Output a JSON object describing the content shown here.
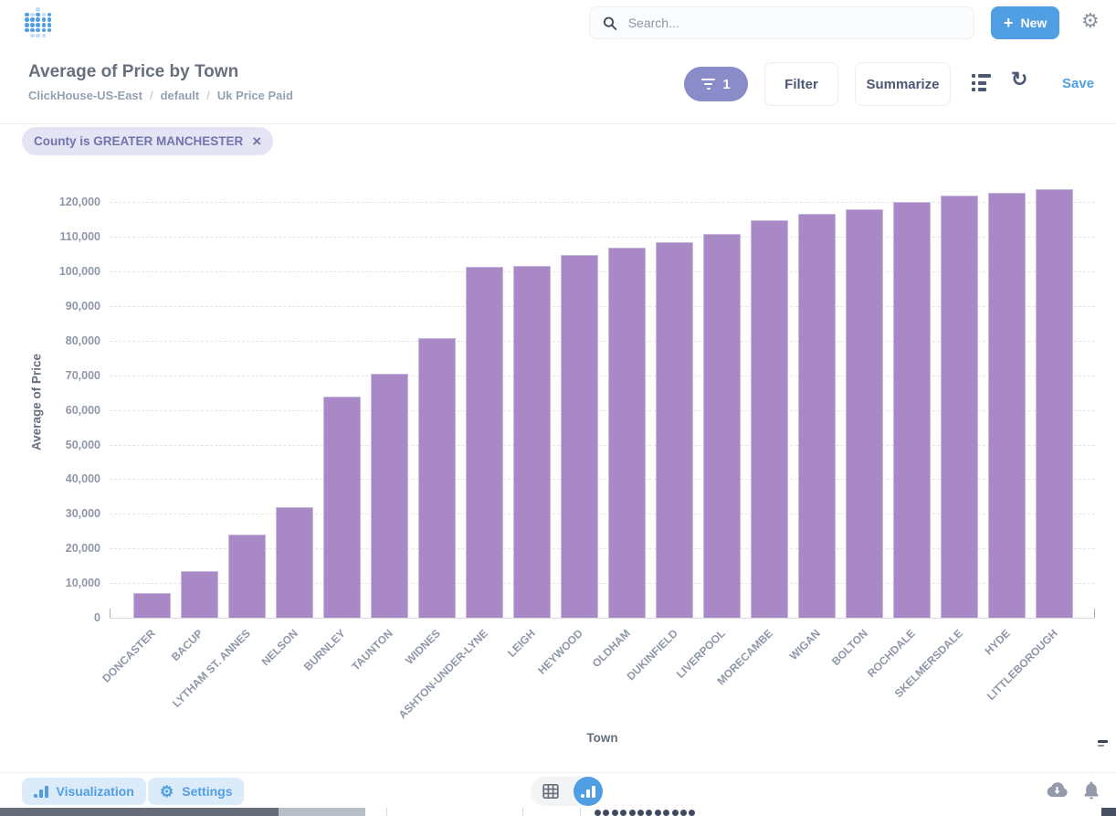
{
  "header": {
    "search_placeholder": "Search...",
    "new_button_label": "New",
    "plus_glyph": "+",
    "gear_glyph": "⚙"
  },
  "question": {
    "title": "Average of Price by Town",
    "breadcrumb": {
      "database": "ClickHouse-US-East",
      "separator": "/",
      "schema": "default",
      "table": "Uk Price Paid"
    }
  },
  "toolbar": {
    "filter_count": "1",
    "filter_label": "Filter",
    "summarize_label": "Summarize",
    "save_label": "Save",
    "refresh_glyph": "↻"
  },
  "filter_chip": {
    "label": "County is GREATER MANCHESTER",
    "close_glyph": "×"
  },
  "chart_data": {
    "type": "bar",
    "title": "Average of Price by Town",
    "xlabel": "Town",
    "ylabel": "Average of Price",
    "categories": [
      "DONCASTER",
      "BACUP",
      "LYTHAM ST. ANNES",
      "NELSON",
      "BURNLEY",
      "TAUNTON",
      "WIDNES",
      "ASHTON-UNDER-LYNE",
      "LEIGH",
      "HEYWOOD",
      "OLDHAM",
      "DUKINFIELD",
      "LIVERPOOL",
      "MORECAMBE",
      "WIGAN",
      "BOLTON",
      "ROCHDALE",
      "SKELMERSDALE",
      "HYDE",
      "LITTLEBOROUGH"
    ],
    "values": [
      7000,
      13400,
      24000,
      32000,
      63900,
      70500,
      80700,
      101200,
      101700,
      104800,
      106800,
      108400,
      110900,
      114800,
      116500,
      118000,
      120000,
      121900,
      122800,
      123700
    ],
    "ylim": [
      0,
      130000
    ],
    "ytick_step": 10000,
    "ytick_max_labeled": 120000,
    "grid": "horizontal-dashed",
    "legend": "none",
    "bar_color": "#A989C5"
  },
  "footer": {
    "visualization_label": "Visualization",
    "settings_label": "Settings",
    "gear_glyph": "⚙"
  },
  "colors": {
    "brand_blue": "#509EE3",
    "bar_purple": "#A989C5",
    "filter_pill_bg": "#8A8BC9",
    "chip_bg": "#E5E4F4",
    "chip_text": "#7173AD",
    "text_dark": "#4C5773",
    "text_gray": "#949AAB"
  }
}
